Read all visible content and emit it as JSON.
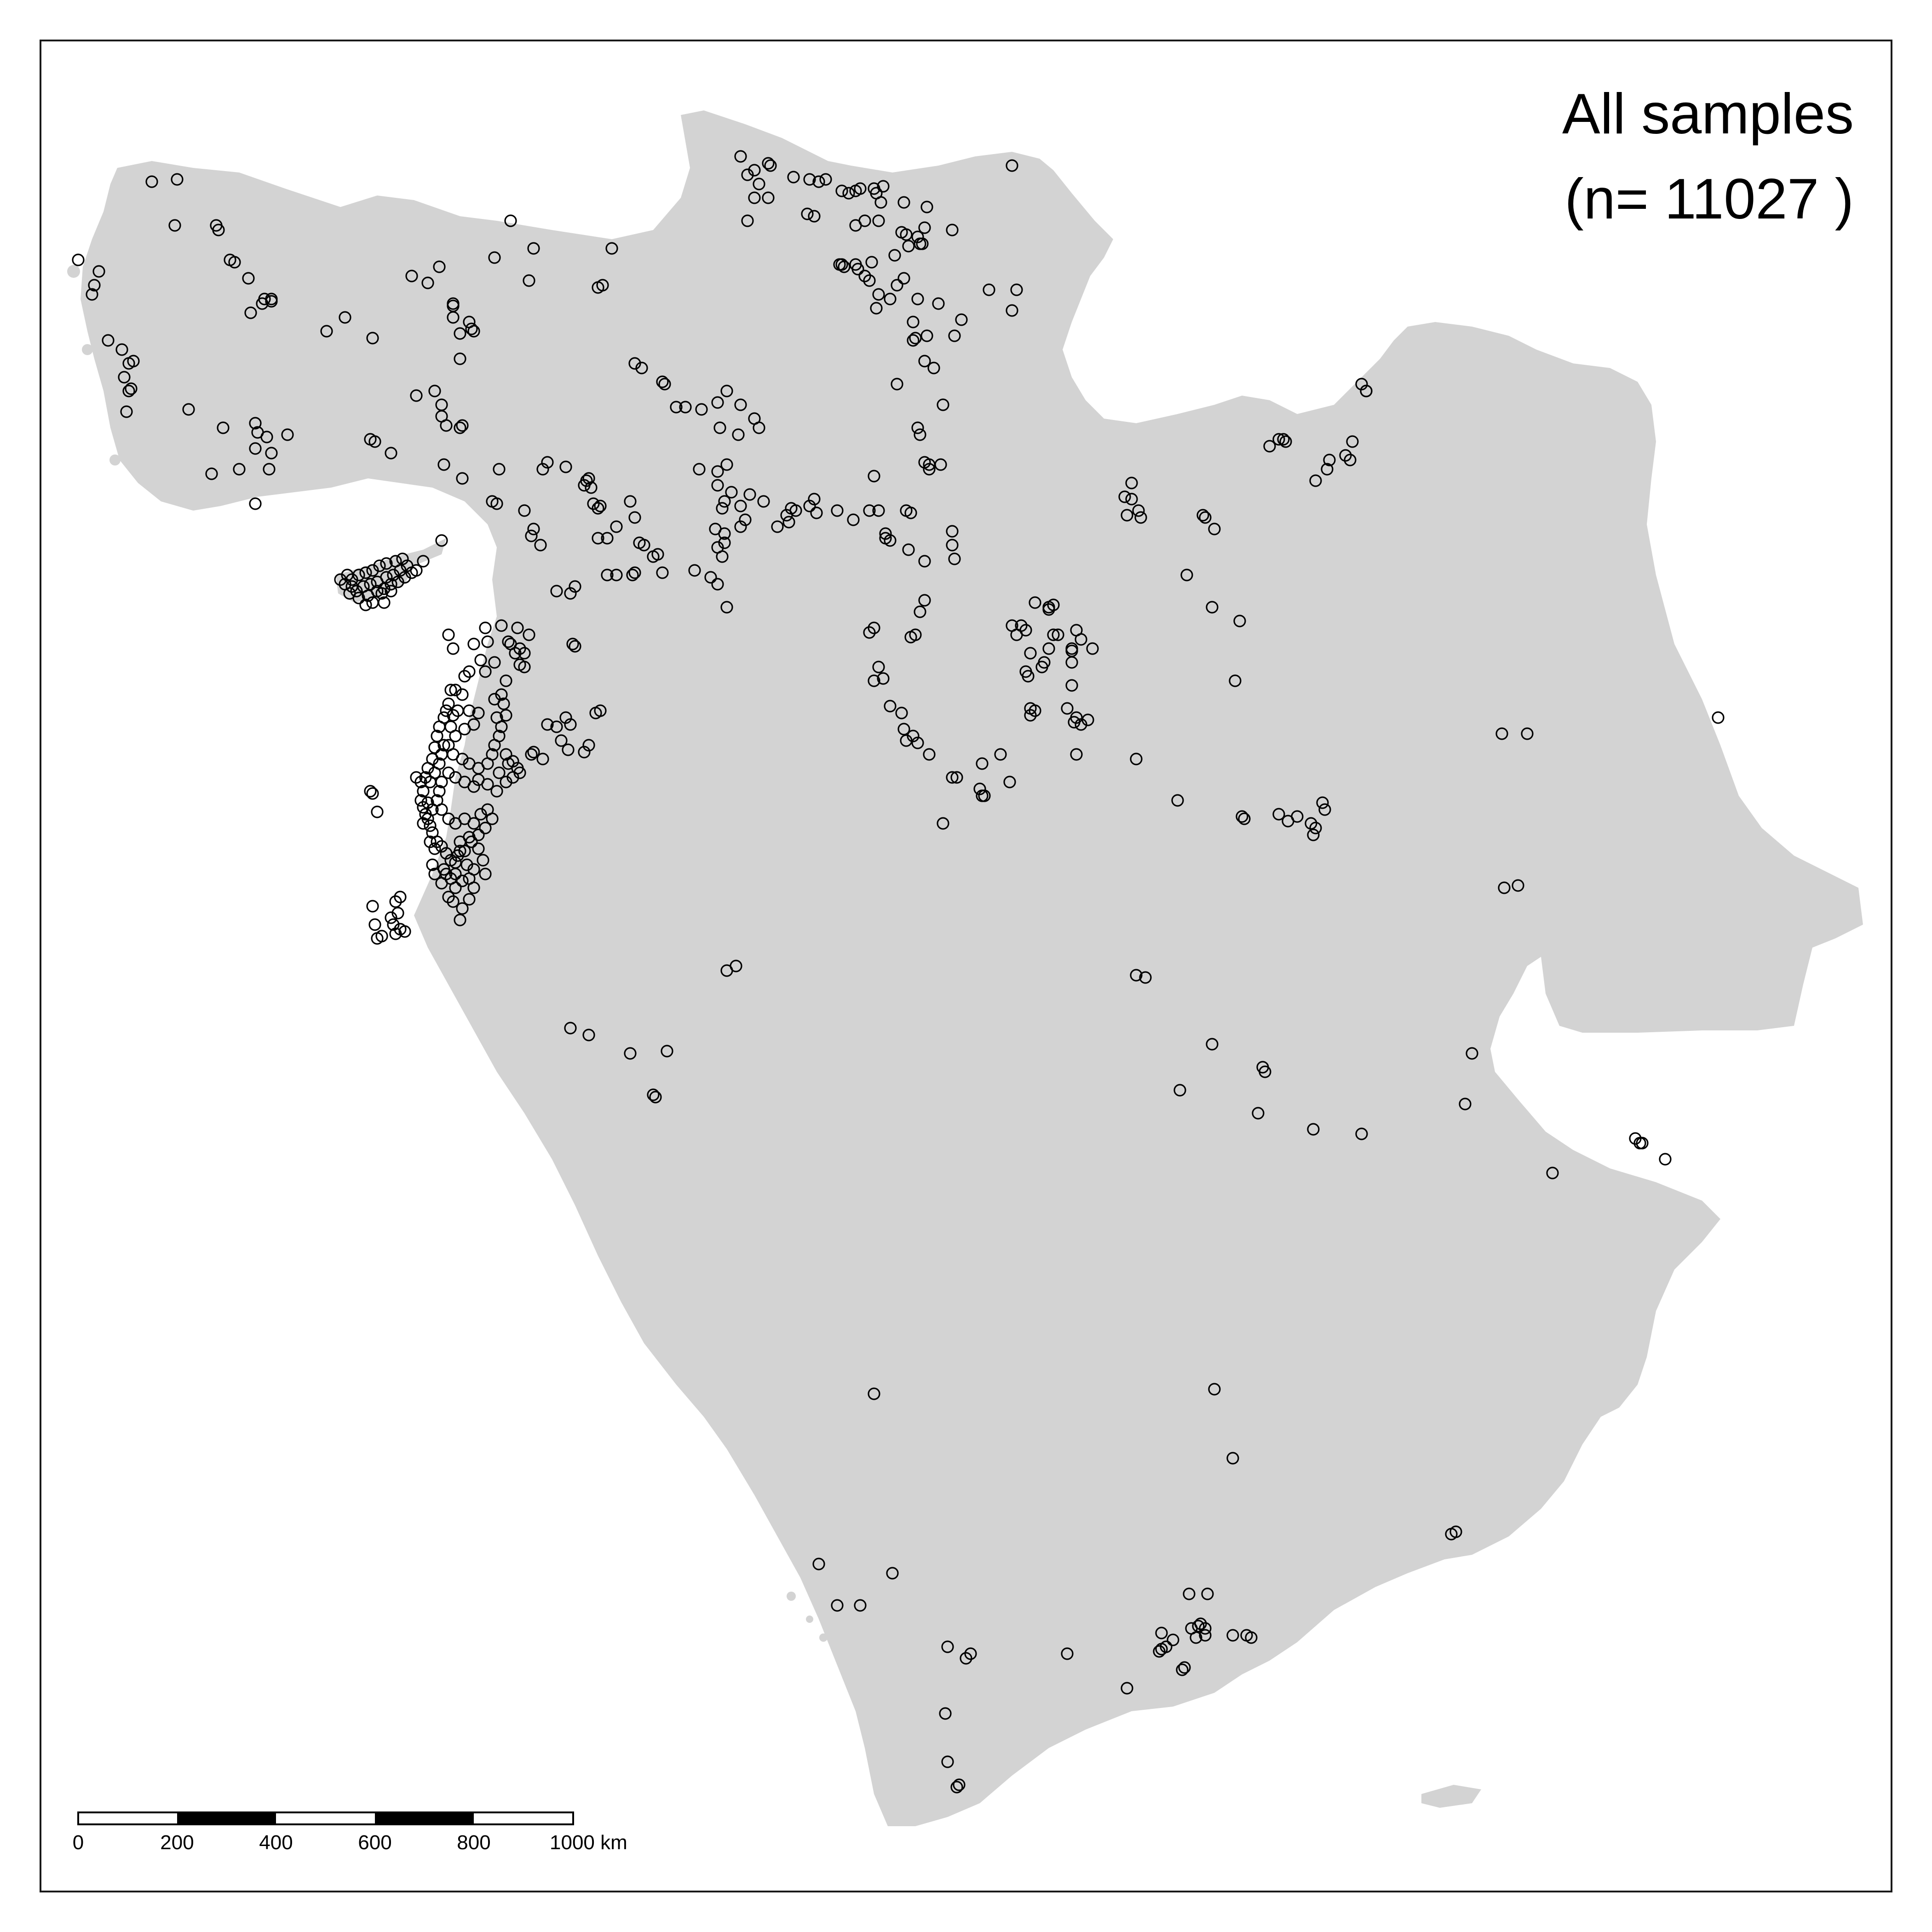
{
  "title": {
    "line1": "All samples",
    "line2": "(n= 11027 )"
  },
  "scale_bar": {
    "unit": "km",
    "ticks": [
      "0",
      "200",
      "400",
      "600",
      "800",
      "1000 km"
    ]
  },
  "colors": {
    "land": "#d3d3d3",
    "background": "#ffffff",
    "points": "#000000",
    "frame": "#1a1a1a"
  },
  "map_style": {
    "marker": "open circle",
    "sample_count": 11027
  }
}
